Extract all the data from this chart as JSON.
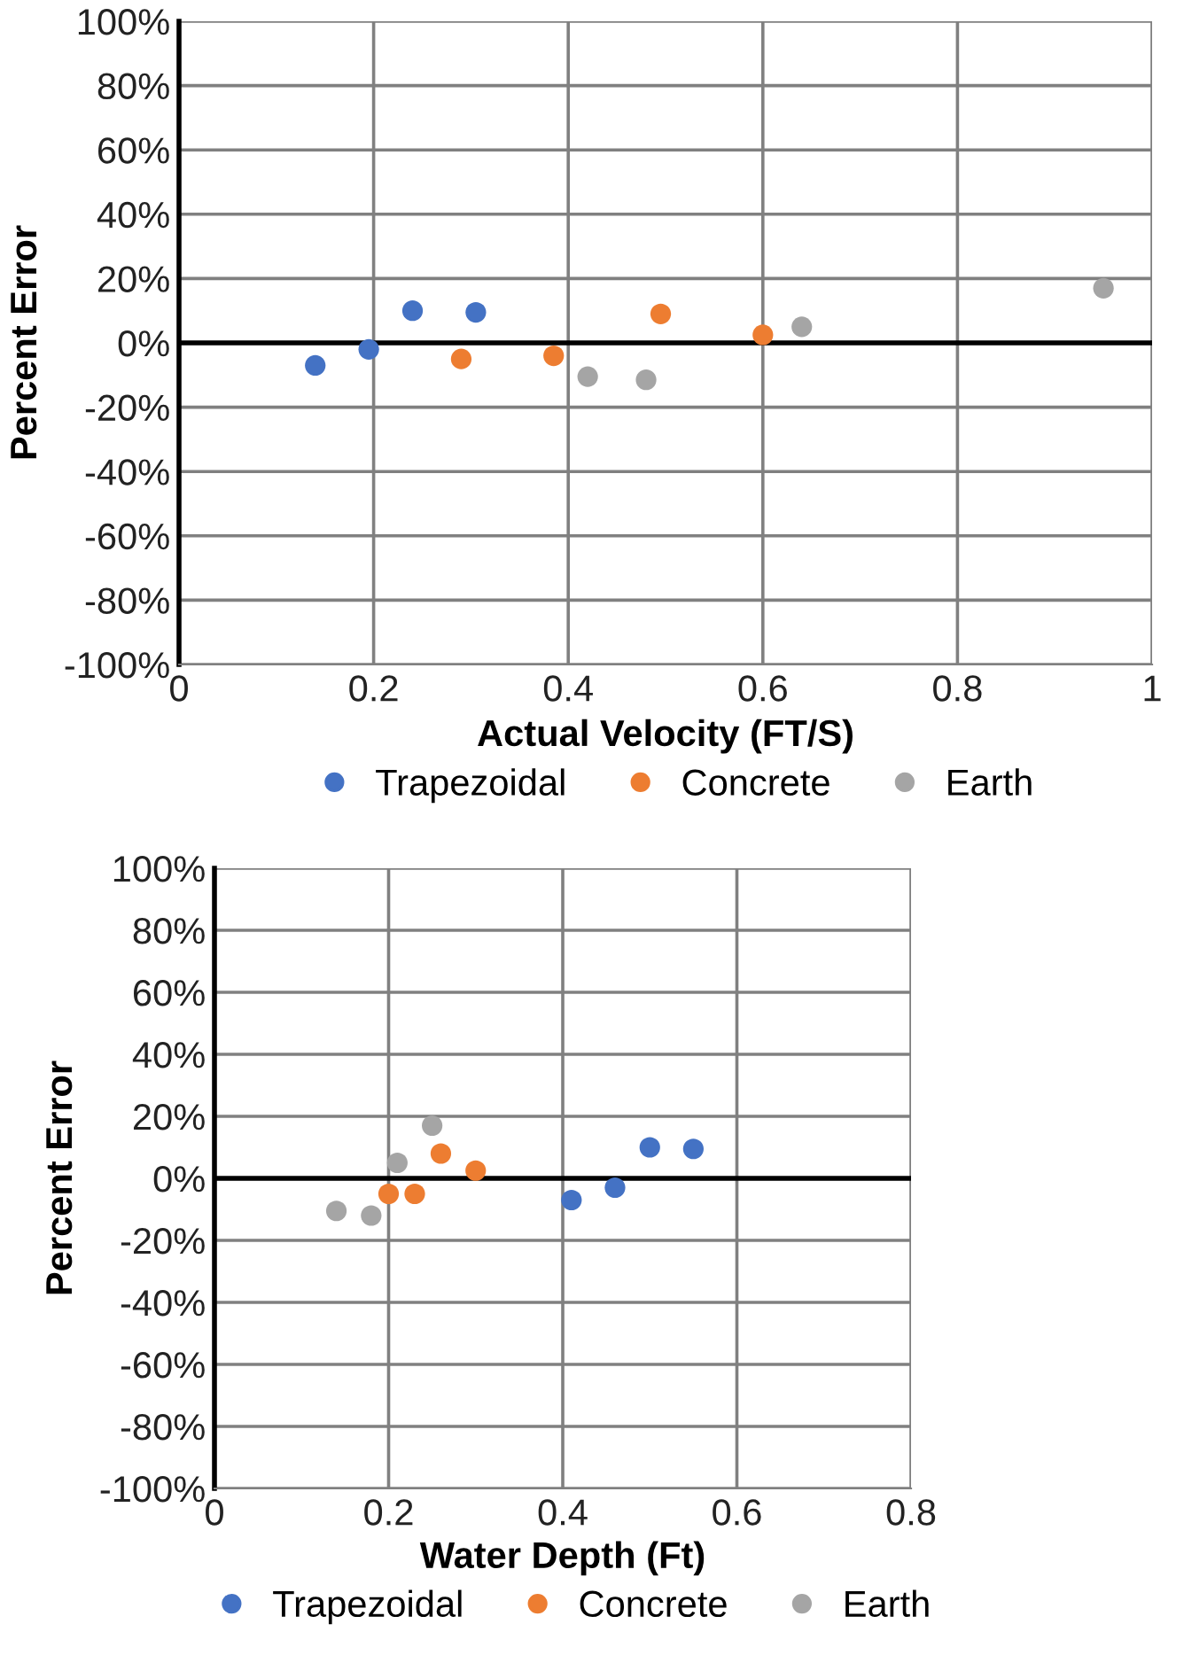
{
  "chart_data": [
    {
      "type": "scatter",
      "xlabel": "Actual Velocity (FT/S)",
      "ylabel": "Percent Error",
      "xlim": [
        0,
        1
      ],
      "xticks": [
        0,
        0.2,
        0.4,
        0.6,
        0.8,
        1
      ],
      "ylim": [
        -100,
        100
      ],
      "yticks": [
        {
          "value": -100,
          "label": "-100%"
        },
        {
          "value": -80,
          "label": "-80%"
        },
        {
          "value": -60,
          "label": "-60%"
        },
        {
          "value": -40,
          "label": "-40%"
        },
        {
          "value": -20,
          "label": "-20%"
        },
        {
          "value": 0,
          "label": "0%"
        },
        {
          "value": 20,
          "label": "20%"
        },
        {
          "value": 40,
          "label": "40%"
        },
        {
          "value": 60,
          "label": "60%"
        },
        {
          "value": 80,
          "label": "80%"
        },
        {
          "value": 100,
          "label": "100%"
        }
      ],
      "grid": true,
      "legend": "bottom",
      "marker": "circle",
      "ref_lines": [
        {
          "axis": "y",
          "value": 0,
          "color": "#000000"
        }
      ],
      "series": [
        {
          "name": "Trapezoidal",
          "color": "#4472c4",
          "x": [
            0.14,
            0.195,
            0.24,
            0.305
          ],
          "values": [
            -7,
            -2,
            10,
            9.5
          ]
        },
        {
          "name": "Concrete",
          "color": "#ed7d31",
          "x": [
            0.29,
            0.385,
            0.495,
            0.6
          ],
          "values": [
            -5,
            -4,
            9,
            2.5
          ]
        },
        {
          "name": "Earth",
          "color": "#a5a5a5",
          "x": [
            0.42,
            0.48,
            0.64,
            0.95
          ],
          "values": [
            -10.5,
            -11.5,
            5,
            17
          ]
        }
      ]
    },
    {
      "type": "scatter",
      "xlabel": "Water Depth (Ft)",
      "ylabel": "Percent Error",
      "xlim": [
        0,
        0.8
      ],
      "xticks": [
        0,
        0.2,
        0.4,
        0.6,
        0.8
      ],
      "ylim": [
        -100,
        100
      ],
      "yticks": [
        {
          "value": -100,
          "label": "-100%"
        },
        {
          "value": -80,
          "label": "-80%"
        },
        {
          "value": -60,
          "label": "-60%"
        },
        {
          "value": -40,
          "label": "-40%"
        },
        {
          "value": -20,
          "label": "-20%"
        },
        {
          "value": 0,
          "label": "0%"
        },
        {
          "value": 20,
          "label": "20%"
        },
        {
          "value": 40,
          "label": "40%"
        },
        {
          "value": 60,
          "label": "60%"
        },
        {
          "value": 80,
          "label": "80%"
        },
        {
          "value": 100,
          "label": "100%"
        }
      ],
      "grid": true,
      "legend": "bottom",
      "marker": "circle",
      "ref_lines": [
        {
          "axis": "y",
          "value": 0,
          "color": "#000000"
        }
      ],
      "series": [
        {
          "name": "Trapezoidal",
          "color": "#4472c4",
          "x": [
            0.41,
            0.46,
            0.5,
            0.55
          ],
          "values": [
            -7,
            -3,
            10,
            9.5
          ]
        },
        {
          "name": "Concrete",
          "color": "#ed7d31",
          "x": [
            0.2,
            0.23,
            0.26,
            0.3
          ],
          "values": [
            -5,
            -5,
            8,
            2.5
          ]
        },
        {
          "name": "Earth",
          "color": "#a5a5a5",
          "x": [
            0.14,
            0.18,
            0.21,
            0.25
          ],
          "values": [
            -10.5,
            -12,
            5,
            17
          ]
        }
      ]
    }
  ]
}
